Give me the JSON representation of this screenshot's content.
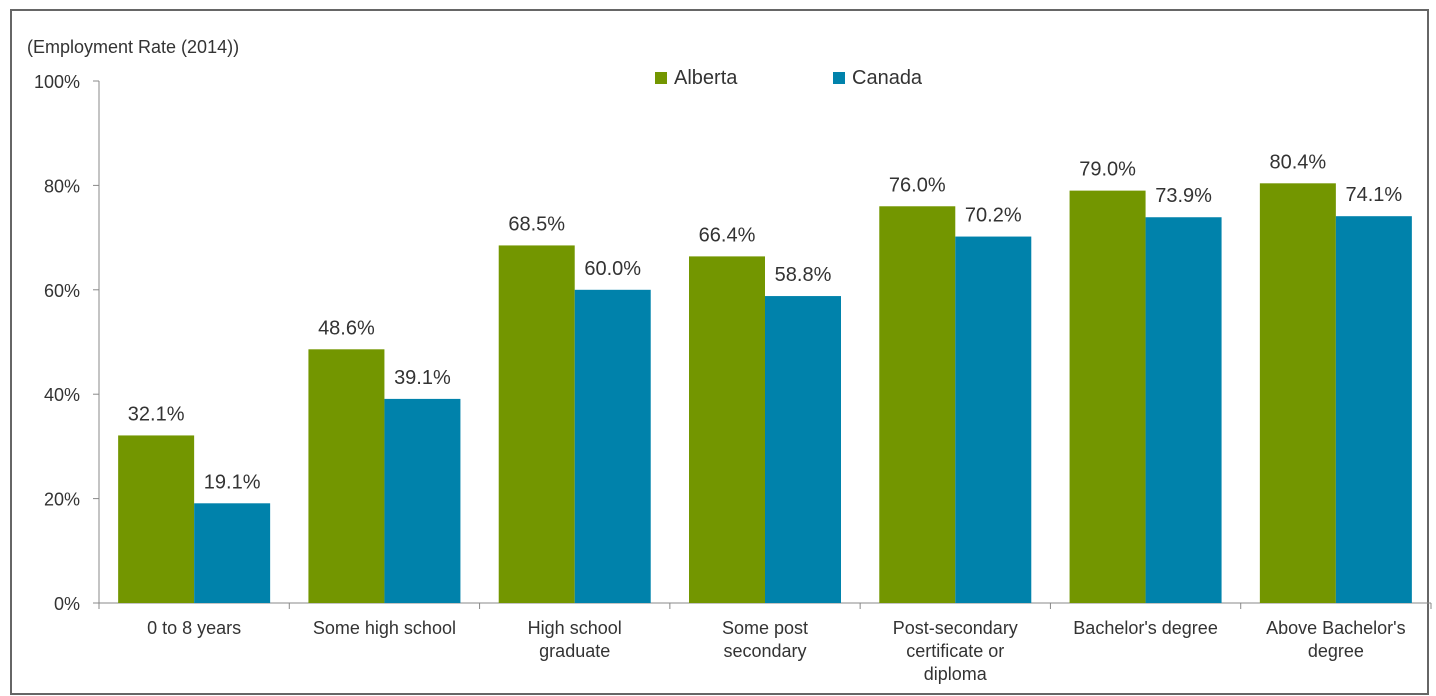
{
  "chart_data": {
    "type": "bar",
    "ylabel": "(Employment Rate (2014))",
    "ylim": [
      0,
      100
    ],
    "yticks": [
      "0%",
      "20%",
      "40%",
      "60%",
      "80%",
      "100%"
    ],
    "ytick_values": [
      0,
      20,
      40,
      60,
      80,
      100
    ],
    "categories": [
      [
        "0 to 8  years"
      ],
      [
        "Some high school"
      ],
      [
        "High school",
        "graduate"
      ],
      [
        "Some post",
        "secondary"
      ],
      [
        "Post-secondary",
        "certificate or",
        "diploma"
      ],
      [
        "Bachelor's degree"
      ],
      [
        "Above Bachelor's",
        "degree"
      ]
    ],
    "series": [
      {
        "name": "Alberta",
        "color": "#739600",
        "values": [
          32.1,
          48.6,
          68.5,
          66.4,
          76.0,
          79.0,
          80.4
        ],
        "labels": [
          "32.1%",
          "48.6%",
          "68.5%",
          "66.4%",
          "76.0%",
          "79.0%",
          "80.4%"
        ]
      },
      {
        "name": "Canada",
        "color": "#0082ab",
        "values": [
          19.1,
          39.1,
          60.0,
          58.8,
          70.2,
          73.9,
          74.1
        ],
        "labels": [
          "19.1%",
          "39.1%",
          "60.0%",
          "58.8%",
          "70.2%",
          "73.9%",
          "74.1%"
        ]
      }
    ],
    "legend": "top-center",
    "grid": false
  }
}
